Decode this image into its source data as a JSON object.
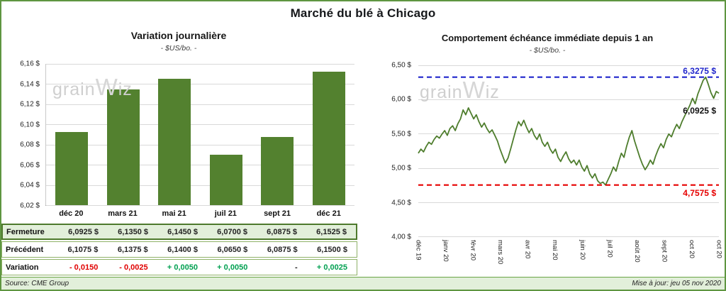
{
  "page": {
    "title": "Marché du blé à Chicago",
    "source": "Source: CME Group",
    "updated": "Mise à jour: jeu 05 nov 2020",
    "watermark": {
      "pre": "grain",
      "mid": "W",
      "post": "iz"
    }
  },
  "chart_data": [
    {
      "type": "bar",
      "title": "Variation  journalière",
      "subtitle": "- $US/bo. -",
      "categories": [
        "déc 20",
        "mars 21",
        "mai 21",
        "juil 21",
        "sept 21",
        "déc 21"
      ],
      "values": [
        6.0925,
        6.135,
        6.145,
        6.07,
        6.0875,
        6.1525
      ],
      "ylim": [
        6.02,
        6.16
      ],
      "yticks": [
        "6,16 $",
        "6,14 $",
        "6,12 $",
        "6,10 $",
        "6,08 $",
        "6,06 $",
        "6,04 $",
        "6,02 $"
      ],
      "bar_color": "#53812f",
      "grid": true,
      "legend": "none"
    },
    {
      "type": "line",
      "title": "Comportement  échéance immédiate depuis 1 an",
      "subtitle": "- $US/bo. -",
      "x_labels": [
        "déc 19",
        "janv 20",
        "févr 20",
        "mars 20",
        "avr 20",
        "mai 20",
        "juin 20",
        "juil 20",
        "août 20",
        "sept 20",
        "oct 20",
        "oct 20"
      ],
      "values": [
        5.22,
        5.28,
        5.24,
        5.32,
        5.38,
        5.35,
        5.42,
        5.47,
        5.44,
        5.5,
        5.55,
        5.48,
        5.58,
        5.62,
        5.55,
        5.65,
        5.72,
        5.85,
        5.78,
        5.88,
        5.8,
        5.72,
        5.78,
        5.68,
        5.6,
        5.66,
        5.58,
        5.52,
        5.56,
        5.48,
        5.4,
        5.28,
        5.18,
        5.08,
        5.15,
        5.28,
        5.42,
        5.56,
        5.68,
        5.62,
        5.7,
        5.6,
        5.52,
        5.58,
        5.48,
        5.42,
        5.5,
        5.38,
        5.32,
        5.38,
        5.28,
        5.22,
        5.28,
        5.16,
        5.1,
        5.18,
        5.24,
        5.14,
        5.08,
        5.12,
        5.05,
        5.12,
        5.02,
        4.96,
        5.04,
        4.92,
        4.86,
        4.92,
        4.82,
        4.78,
        4.8,
        4.7575,
        4.84,
        4.92,
        5.02,
        4.96,
        5.1,
        5.22,
        5.16,
        5.32,
        5.45,
        5.55,
        5.4,
        5.28,
        5.16,
        5.06,
        4.98,
        5.04,
        5.12,
        5.06,
        5.18,
        5.28,
        5.36,
        5.3,
        5.42,
        5.5,
        5.46,
        5.56,
        5.64,
        5.58,
        5.68,
        5.76,
        5.84,
        5.92,
        6.02,
        5.94,
        6.08,
        6.18,
        6.28,
        6.3275,
        6.22,
        6.1,
        6.02,
        6.12,
        6.0925
      ],
      "ylim": [
        4.0,
        6.5
      ],
      "yticks": [
        "6,50 $",
        "6,00 $",
        "5,50 $",
        "5,00 $",
        "4,50 $",
        "4,00 $"
      ],
      "line_color": "#4e7d2d",
      "high_line": {
        "value": 6.3275,
        "label": "6,3275 $",
        "color": "#2026cc"
      },
      "low_line": {
        "value": 4.7575,
        "label": "4,7575 $",
        "color": "#e60000"
      },
      "last_label": {
        "value": 6.0925,
        "label": "6,0925 $"
      },
      "grid": true,
      "legend": "none"
    }
  ],
  "table": {
    "rows": [
      {
        "header": "Fermeture",
        "values": [
          "6,0925  $",
          "6,1350  $",
          "6,1450  $",
          "6,0700  $",
          "6,0875  $",
          "6,1525  $"
        ],
        "colors": [
          "black",
          "black",
          "black",
          "black",
          "black",
          "black"
        ]
      },
      {
        "header": "Précédent",
        "values": [
          "6,1075  $",
          "6,1375  $",
          "6,1400  $",
          "6,0650  $",
          "6,0875  $",
          "6,1500  $"
        ],
        "colors": [
          "black",
          "black",
          "black",
          "black",
          "black",
          "black"
        ]
      },
      {
        "header": "Variation",
        "values": [
          "- 0,0150",
          "- 0,0025",
          "+ 0,0050",
          "+ 0,0050",
          "-",
          "+ 0,0025"
        ],
        "colors": [
          "red",
          "red",
          "green",
          "green",
          "black",
          "green"
        ]
      }
    ]
  }
}
